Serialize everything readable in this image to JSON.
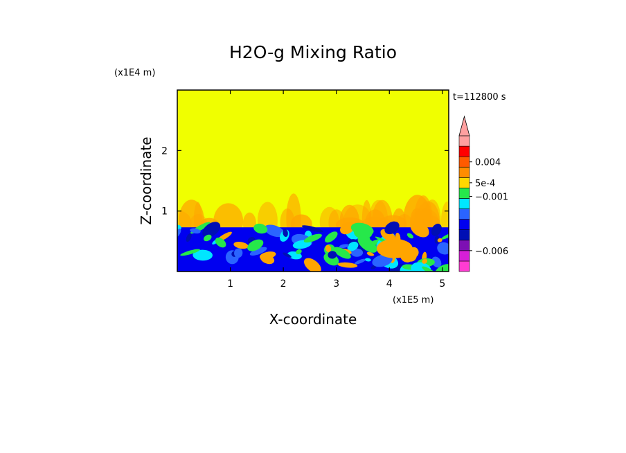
{
  "chart_data": {
    "type": "heatmap",
    "title": "H2O-g Mixing Ratio",
    "xlabel": "X-coordinate",
    "ylabel": "Z-coordinate",
    "x_scale_label": "(x1E5 m)",
    "y_scale_label": "(x1E4 m)",
    "time_label": "t=112800 s",
    "xlim": [
      0,
      5.12
    ],
    "ylim": [
      0,
      3.0
    ],
    "x_ticks": [
      {
        "value": 1,
        "label": "1"
      },
      {
        "value": 2,
        "label": "2"
      },
      {
        "value": 3,
        "label": "3"
      },
      {
        "value": 4,
        "label": "4"
      },
      {
        "value": 5,
        "label": "5"
      }
    ],
    "y_ticks": [
      {
        "value": 1,
        "label": "1"
      },
      {
        "value": 2,
        "label": "2"
      }
    ],
    "colorbar": {
      "colors": [
        "#ff3cd2",
        "#d71fd7",
        "#7d10b3",
        "#000fb4",
        "#0000f0",
        "#2a64ff",
        "#00e6ff",
        "#26e84a",
        "#ffd700",
        "#ff8c00",
        "#ff5a00",
        "#ff0000",
        "#ffa0a0"
      ],
      "labels": [
        {
          "text": "0.004",
          "bin": 10.5
        },
        {
          "text": "5e-4",
          "bin": 8.5
        },
        {
          "text": "−0.001",
          "bin": 7.2
        },
        {
          "text": "−0.006",
          "bin": 2.0
        }
      ]
    },
    "field": {
      "background": "#f0ff00",
      "plume_color": "#ffa500",
      "lower_layer_top": 0.73,
      "lower_layer_colors": [
        "#0000f0",
        "#000fb4",
        "#2a64ff",
        "#00e6ff",
        "#26e84a",
        "#ffa500"
      ]
    }
  }
}
